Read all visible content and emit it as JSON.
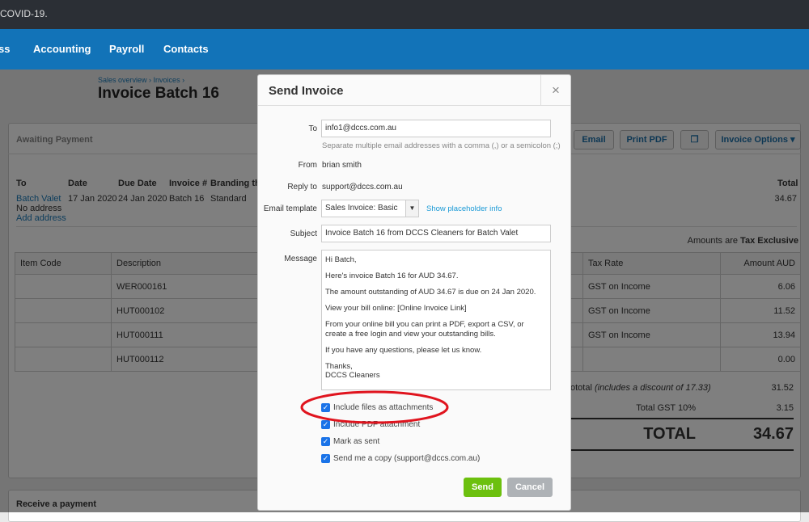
{
  "banner": {
    "text": "COVID-19."
  },
  "nav": {
    "items": [
      "ss",
      "Accounting",
      "Payroll",
      "Contacts"
    ]
  },
  "breadcrumb": {
    "parts": [
      "Sales overview ›",
      "Invoices ›"
    ]
  },
  "page_title": "Invoice Batch 16",
  "invoice": {
    "status": "Awaiting Payment",
    "actions": {
      "email": "Email",
      "print": "Print PDF",
      "options": "Invoice Options"
    },
    "headers": {
      "to": "To",
      "date": "Date",
      "due": "Due Date",
      "number": "Invoice #",
      "branding": "Branding the",
      "total": "Total"
    },
    "to_name": "Batch Valet",
    "no_address": "No address",
    "add_address": "Add address",
    "date": "17 Jan 2020",
    "due": "24 Jan 2020",
    "number": "Batch 16",
    "branding": "Standard",
    "total": "34.67",
    "amounts_are": "Amounts are",
    "tax_mode": "Tax Exclusive",
    "columns": [
      "Item Code",
      "Description",
      "Tax Rate",
      "Amount AUD"
    ],
    "rows": [
      {
        "desc": "WER000161",
        "tax": "GST on Income",
        "amount": "6.06"
      },
      {
        "desc": "HUT000102",
        "tax": "GST on Income",
        "amount": "11.52"
      },
      {
        "desc": "HUT000111",
        "tax": "GST on Income",
        "amount": "13.94"
      },
      {
        "desc": "HUT000112",
        "tax": "",
        "amount": "0.00"
      }
    ],
    "subtotal_label": "ototal",
    "subtotal_note": "(includes a discount of 17.33)",
    "subtotal": "31.52",
    "gst_label": "Total GST  10%",
    "gst": "3.15",
    "total_label": "TOTAL",
    "grand_total": "34.67"
  },
  "receive_payment": "Receive a payment",
  "modal": {
    "title": "Send Invoice",
    "close": "×",
    "to_label": "To",
    "to_value": "info1@dccs.com.au",
    "to_hint": "Separate multiple email addresses with a comma (,) or a semicolon (;)",
    "from_label": "From",
    "from_value": "brian smith",
    "reply_label": "Reply to",
    "reply_value": "support@dccs.com.au",
    "template_label": "Email template",
    "template_value": "Sales Invoice: Basic",
    "placeholder_link": "Show placeholder info",
    "subject_label": "Subject",
    "subject_value": "Invoice Batch 16 from DCCS Cleaners for Batch Valet",
    "message_label": "Message",
    "message_lines": [
      "Hi Batch,",
      "Here's invoice Batch 16 for AUD 34.67.",
      "The amount outstanding of AUD 34.67 is due on 24 Jan 2020.",
      "View your bill online: [Online Invoice Link]",
      "From your online bill you can print a PDF, export a CSV, or create a free login and view your outstanding bills.",
      "If you have any questions, please let us know.",
      "Thanks,",
      "DCCS Cleaners"
    ],
    "checkboxes": [
      {
        "label": "Include files as attachments",
        "checked": true
      },
      {
        "label": "Include PDF attachment",
        "checked": true
      },
      {
        "label": "Mark as sent",
        "checked": true
      },
      {
        "label": "Send me a copy (support@dccs.com.au)",
        "checked": true
      }
    ],
    "send": "Send",
    "cancel": "Cancel",
    "highlight_color": "#e0141e"
  }
}
